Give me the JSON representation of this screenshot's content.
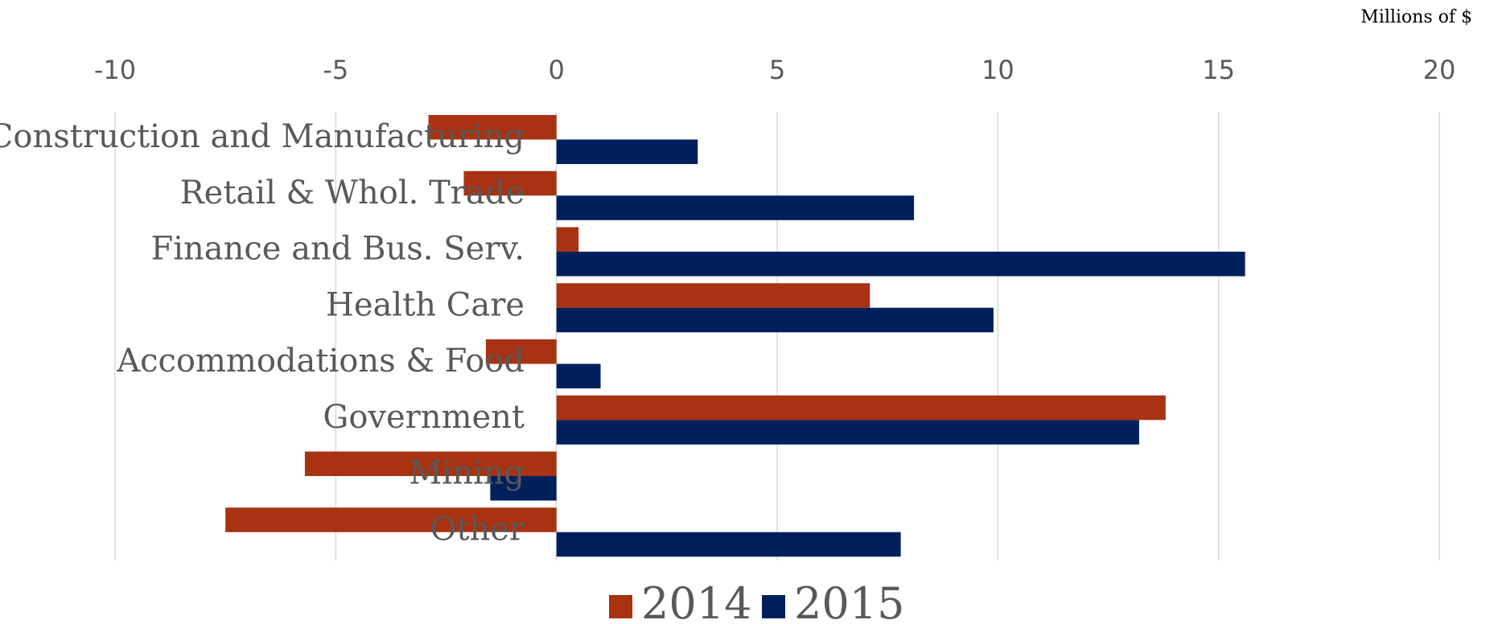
{
  "chart_data": {
    "type": "barh",
    "xlabel": "Millions of $",
    "categories": [
      "Construction and Manufacturing",
      "Retail & Whol. Trade",
      "Finance and Bus. Serv.",
      "Health Care",
      "Accommodations & Food",
      "Government",
      "Mining",
      "Other"
    ],
    "series": [
      {
        "name": "2014",
        "color": "#a83212",
        "values": [
          -2.9,
          -2.1,
          0.5,
          7.1,
          -1.6,
          13.8,
          -5.7,
          -7.5
        ]
      },
      {
        "name": "2015",
        "color": "#00205c",
        "values": [
          3.2,
          8.1,
          15.6,
          9.9,
          1.0,
          13.2,
          -1.5,
          7.8
        ]
      }
    ],
    "xlim": [
      -10,
      20
    ],
    "xticks": [
      -10,
      -5,
      0,
      5,
      10,
      15,
      20
    ],
    "grid": true,
    "legend": "bottom"
  }
}
